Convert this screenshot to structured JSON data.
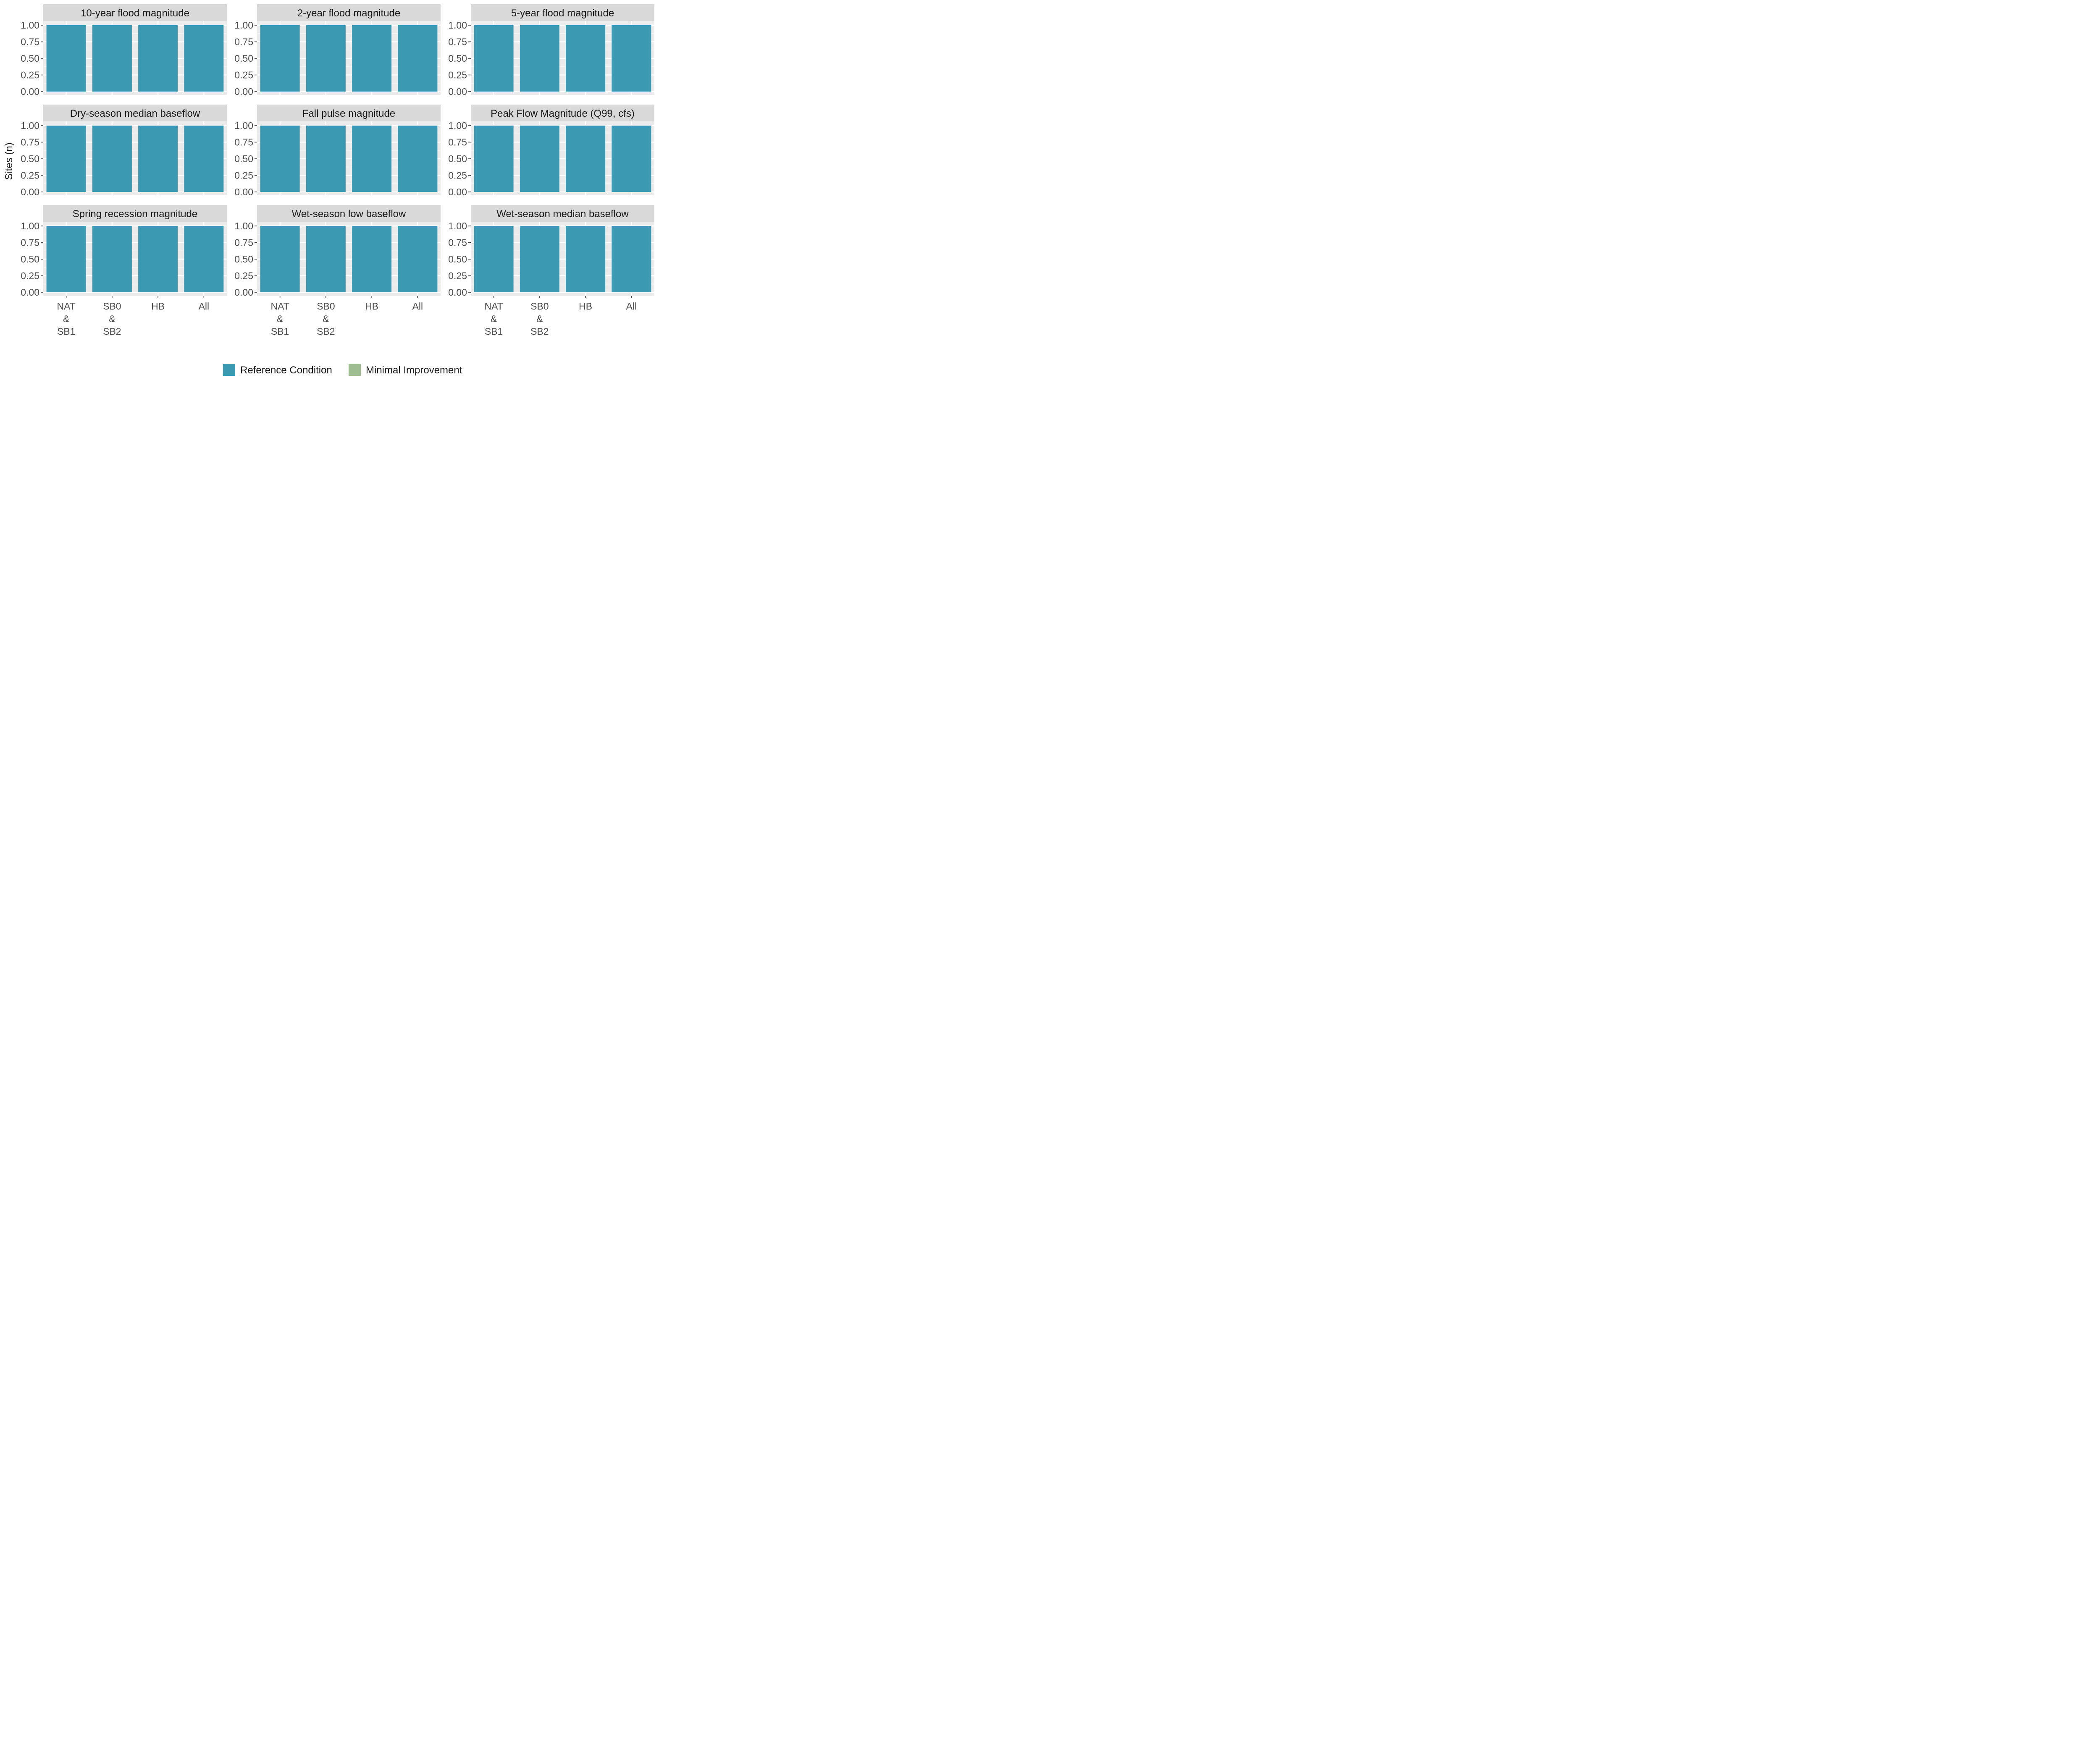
{
  "chart_data": {
    "type": "bar",
    "ylabel": "Sites (n)",
    "xlabel": "",
    "ylim": [
      0,
      1
    ],
    "yticks": [
      "0.00",
      "0.25",
      "0.50",
      "0.75",
      "1.00"
    ],
    "categories": [
      [
        "NAT",
        "&",
        "SB1"
      ],
      [
        "SB0",
        "&",
        "SB2"
      ],
      [
        "HB"
      ],
      [
        "All"
      ]
    ],
    "legend": {
      "position": "bottom",
      "entries": [
        {
          "label": "Reference Condition",
          "color": "#3c99b2"
        },
        {
          "label": "Minimal Improvement",
          "color": "#9ebe91"
        }
      ]
    },
    "grid": true,
    "facets": [
      {
        "title": "10-year flood magnitude",
        "series": [
          {
            "name": "Reference Condition",
            "values": [
              1,
              1,
              1,
              1
            ]
          },
          {
            "name": "Minimal Improvement",
            "values": [
              0,
              0,
              0,
              0
            ]
          }
        ]
      },
      {
        "title": "2-year flood magnitude",
        "series": [
          {
            "name": "Reference Condition",
            "values": [
              1,
              1,
              1,
              1
            ]
          },
          {
            "name": "Minimal Improvement",
            "values": [
              0,
              0,
              0,
              0
            ]
          }
        ]
      },
      {
        "title": "5-year flood magnitude",
        "series": [
          {
            "name": "Reference Condition",
            "values": [
              1,
              1,
              1,
              1
            ]
          },
          {
            "name": "Minimal Improvement",
            "values": [
              0,
              0,
              0,
              0
            ]
          }
        ]
      },
      {
        "title": "Dry-season median baseflow",
        "series": [
          {
            "name": "Reference Condition",
            "values": [
              1,
              1,
              1,
              1
            ]
          },
          {
            "name": "Minimal Improvement",
            "values": [
              0,
              0,
              0,
              0
            ]
          }
        ]
      },
      {
        "title": "Fall pulse magnitude",
        "series": [
          {
            "name": "Reference Condition",
            "values": [
              1,
              1,
              1,
              1
            ]
          },
          {
            "name": "Minimal Improvement",
            "values": [
              0,
              0,
              0,
              0
            ]
          }
        ]
      },
      {
        "title": "Peak Flow Magnitude (Q99, cfs)",
        "series": [
          {
            "name": "Reference Condition",
            "values": [
              1,
              1,
              1,
              1
            ]
          },
          {
            "name": "Minimal Improvement",
            "values": [
              0,
              0,
              0,
              0
            ]
          }
        ]
      },
      {
        "title": "Spring recession magnitude",
        "series": [
          {
            "name": "Reference Condition",
            "values": [
              1,
              1,
              1,
              1
            ]
          },
          {
            "name": "Minimal Improvement",
            "values": [
              0,
              0,
              0,
              0
            ]
          }
        ]
      },
      {
        "title": "Wet-season low baseflow",
        "series": [
          {
            "name": "Reference Condition",
            "values": [
              1,
              1,
              1,
              1
            ]
          },
          {
            "name": "Minimal Improvement",
            "values": [
              0,
              0,
              0,
              0
            ]
          }
        ]
      },
      {
        "title": "Wet-season median baseflow",
        "series": [
          {
            "name": "Reference Condition",
            "values": [
              1,
              1,
              1,
              1
            ]
          },
          {
            "name": "Minimal Improvement",
            "values": [
              0,
              0,
              0,
              0
            ]
          }
        ]
      }
    ]
  }
}
